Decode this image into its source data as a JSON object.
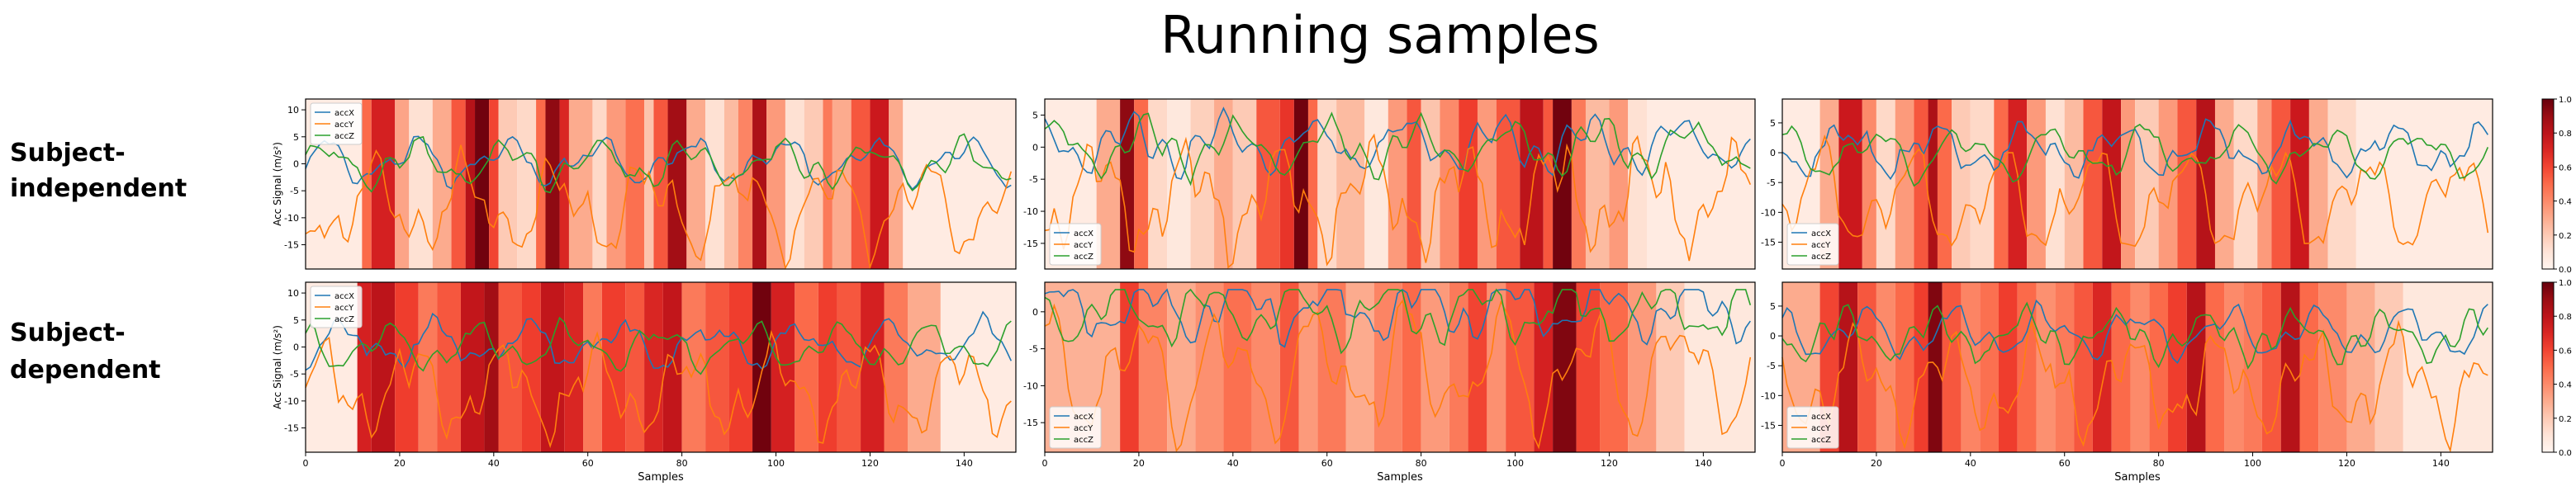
{
  "title": "Running samples",
  "row_labels": [
    [
      "Subject-",
      "independent"
    ],
    [
      "Subject-",
      "dependent"
    ]
  ],
  "colors": {
    "accX": "#1f77b4",
    "accY": "#ff7f0e",
    "accZ": "#2ca02c"
  },
  "colormap": "Reds",
  "chart_data": [
    {
      "type": "line",
      "row": 0,
      "col": 0,
      "x_range": [
        0,
        151
      ],
      "ylim": [
        -19.5,
        12
      ],
      "yticks": [
        10,
        5,
        0,
        -5,
        -10,
        -15
      ],
      "xticks": [],
      "ylabel": "Acc Signal (m/s²)",
      "xlabel": "",
      "legend": {
        "loc": "upper-left",
        "entries": [
          "accX",
          "accY",
          "accZ"
        ]
      },
      "attention_bands": [
        {
          "x0": 0,
          "x1": 12,
          "w": 0.06
        },
        {
          "x0": 12,
          "x1": 14,
          "w": 0.5
        },
        {
          "x0": 14,
          "x1": 19,
          "w": 0.72
        },
        {
          "x0": 19,
          "x1": 22,
          "w": 0.32
        },
        {
          "x0": 22,
          "x1": 27,
          "w": 0.12
        },
        {
          "x0": 27,
          "x1": 31,
          "w": 0.3
        },
        {
          "x0": 31,
          "x1": 34,
          "w": 0.55
        },
        {
          "x0": 34,
          "x1": 36,
          "w": 0.82
        },
        {
          "x0": 36,
          "x1": 39,
          "w": 0.98
        },
        {
          "x0": 39,
          "x1": 41,
          "w": 0.6
        },
        {
          "x0": 41,
          "x1": 45,
          "w": 0.2
        },
        {
          "x0": 45,
          "x1": 49,
          "w": 0.15
        },
        {
          "x0": 49,
          "x1": 51,
          "w": 0.5
        },
        {
          "x0": 51,
          "x1": 54,
          "w": 0.92
        },
        {
          "x0": 54,
          "x1": 56,
          "w": 0.7
        },
        {
          "x0": 56,
          "x1": 61,
          "w": 0.3
        },
        {
          "x0": 61,
          "x1": 64,
          "w": 0.15
        },
        {
          "x0": 64,
          "x1": 68,
          "w": 0.35
        },
        {
          "x0": 68,
          "x1": 72,
          "w": 0.48
        },
        {
          "x0": 72,
          "x1": 74,
          "w": 0.22
        },
        {
          "x0": 74,
          "x1": 77,
          "w": 0.55
        },
        {
          "x0": 77,
          "x1": 81,
          "w": 0.88
        },
        {
          "x0": 81,
          "x1": 85,
          "w": 0.3
        },
        {
          "x0": 85,
          "x1": 89,
          "w": 0.12
        },
        {
          "x0": 89,
          "x1": 92,
          "w": 0.25
        },
        {
          "x0": 92,
          "x1": 95,
          "w": 0.42
        },
        {
          "x0": 95,
          "x1": 98,
          "w": 0.85
        },
        {
          "x0": 98,
          "x1": 102,
          "w": 0.35
        },
        {
          "x0": 102,
          "x1": 106,
          "w": 0.12
        },
        {
          "x0": 106,
          "x1": 110,
          "w": 0.2
        },
        {
          "x0": 110,
          "x1": 112,
          "w": 0.45
        },
        {
          "x0": 112,
          "x1": 116,
          "w": 0.3
        },
        {
          "x0": 116,
          "x1": 120,
          "w": 0.55
        },
        {
          "x0": 120,
          "x1": 124,
          "w": 0.75
        },
        {
          "x0": 124,
          "x1": 127,
          "w": 0.3
        },
        {
          "x0": 127,
          "x1": 151,
          "w": 0.06
        }
      ]
    },
    {
      "type": "line",
      "row": 0,
      "col": 1,
      "x_range": [
        0,
        151
      ],
      "ylim": [
        -19,
        7.5
      ],
      "yticks": [
        5,
        0,
        -5,
        -10,
        -15
      ],
      "xticks": [],
      "ylabel": "",
      "xlabel": "",
      "legend": {
        "loc": "lower-left",
        "entries": [
          "accX",
          "accY",
          "accZ"
        ]
      },
      "attention_bands": [
        {
          "x0": 0,
          "x1": 11,
          "w": 0.06
        },
        {
          "x0": 11,
          "x1": 16,
          "w": 0.3
        },
        {
          "x0": 16,
          "x1": 19,
          "w": 0.92
        },
        {
          "x0": 19,
          "x1": 22,
          "w": 0.5
        },
        {
          "x0": 22,
          "x1": 26,
          "w": 0.15
        },
        {
          "x0": 26,
          "x1": 31,
          "w": 0.08
        },
        {
          "x0": 31,
          "x1": 36,
          "w": 0.18
        },
        {
          "x0": 36,
          "x1": 40,
          "w": 0.3
        },
        {
          "x0": 40,
          "x1": 45,
          "w": 0.2
        },
        {
          "x0": 45,
          "x1": 50,
          "w": 0.55
        },
        {
          "x0": 50,
          "x1": 53,
          "w": 0.65
        },
        {
          "x0": 53,
          "x1": 56,
          "w": 0.98
        },
        {
          "x0": 56,
          "x1": 58,
          "w": 0.5
        },
        {
          "x0": 58,
          "x1": 62,
          "w": 0.15
        },
        {
          "x0": 62,
          "x1": 68,
          "w": 0.25
        },
        {
          "x0": 68,
          "x1": 73,
          "w": 0.08
        },
        {
          "x0": 73,
          "x1": 77,
          "w": 0.35
        },
        {
          "x0": 77,
          "x1": 80,
          "w": 0.55
        },
        {
          "x0": 80,
          "x1": 84,
          "w": 0.22
        },
        {
          "x0": 84,
          "x1": 88,
          "w": 0.4
        },
        {
          "x0": 88,
          "x1": 92,
          "w": 0.62
        },
        {
          "x0": 92,
          "x1": 96,
          "w": 0.35
        },
        {
          "x0": 96,
          "x1": 101,
          "w": 0.55
        },
        {
          "x0": 101,
          "x1": 106,
          "w": 0.8
        },
        {
          "x0": 106,
          "x1": 108,
          "w": 0.55
        },
        {
          "x0": 108,
          "x1": 112,
          "w": 0.98
        },
        {
          "x0": 112,
          "x1": 115,
          "w": 0.45
        },
        {
          "x0": 115,
          "x1": 120,
          "w": 0.25
        },
        {
          "x0": 120,
          "x1": 124,
          "w": 0.35
        },
        {
          "x0": 124,
          "x1": 128,
          "w": 0.12
        },
        {
          "x0": 128,
          "x1": 151,
          "w": 0.06
        }
      ]
    },
    {
      "type": "line",
      "row": 0,
      "col": 2,
      "x_range": [
        0,
        151
      ],
      "ylim": [
        -19.5,
        9
      ],
      "yticks": [
        5,
        0,
        -5,
        -10,
        -15
      ],
      "xticks": [],
      "ylabel": "",
      "xlabel": "",
      "legend": {
        "loc": "lower-left",
        "entries": [
          "accX",
          "accY",
          "accZ"
        ]
      },
      "attention_bands": [
        {
          "x0": 0,
          "x1": 8,
          "w": 0.06
        },
        {
          "x0": 8,
          "x1": 12,
          "w": 0.3
        },
        {
          "x0": 12,
          "x1": 17,
          "w": 0.75
        },
        {
          "x0": 17,
          "x1": 20,
          "w": 0.4
        },
        {
          "x0": 20,
          "x1": 24,
          "w": 0.15
        },
        {
          "x0": 24,
          "x1": 28,
          "w": 0.35
        },
        {
          "x0": 28,
          "x1": 31,
          "w": 0.55
        },
        {
          "x0": 31,
          "x1": 33,
          "w": 0.85
        },
        {
          "x0": 33,
          "x1": 36,
          "w": 0.5
        },
        {
          "x0": 36,
          "x1": 40,
          "w": 0.2
        },
        {
          "x0": 40,
          "x1": 45,
          "w": 0.15
        },
        {
          "x0": 45,
          "x1": 48,
          "w": 0.5
        },
        {
          "x0": 48,
          "x1": 52,
          "w": 0.72
        },
        {
          "x0": 52,
          "x1": 56,
          "w": 0.35
        },
        {
          "x0": 56,
          "x1": 60,
          "w": 0.12
        },
        {
          "x0": 60,
          "x1": 64,
          "w": 0.25
        },
        {
          "x0": 64,
          "x1": 68,
          "w": 0.55
        },
        {
          "x0": 68,
          "x1": 72,
          "w": 0.78
        },
        {
          "x0": 72,
          "x1": 75,
          "w": 0.35
        },
        {
          "x0": 75,
          "x1": 80,
          "w": 0.2
        },
        {
          "x0": 80,
          "x1": 84,
          "w": 0.35
        },
        {
          "x0": 84,
          "x1": 88,
          "w": 0.55
        },
        {
          "x0": 88,
          "x1": 92,
          "w": 0.82
        },
        {
          "x0": 92,
          "x1": 96,
          "w": 0.3
        },
        {
          "x0": 96,
          "x1": 101,
          "w": 0.15
        },
        {
          "x0": 101,
          "x1": 104,
          "w": 0.35
        },
        {
          "x0": 104,
          "x1": 108,
          "w": 0.55
        },
        {
          "x0": 108,
          "x1": 112,
          "w": 0.75
        },
        {
          "x0": 112,
          "x1": 116,
          "w": 0.3
        },
        {
          "x0": 116,
          "x1": 122,
          "w": 0.15
        },
        {
          "x0": 122,
          "x1": 151,
          "w": 0.06
        }
      ]
    },
    {
      "type": "line",
      "row": 1,
      "col": 0,
      "x_range": [
        0,
        151
      ],
      "ylim": [
        -19.5,
        12
      ],
      "yticks": [
        10,
        5,
        0,
        -5,
        -10,
        -15
      ],
      "xticks": [
        0,
        20,
        40,
        60,
        80,
        100,
        120,
        140
      ],
      "ylabel": "Acc Signal (m/s²)",
      "xlabel": "Samples",
      "legend": {
        "loc": "upper-left",
        "entries": [
          "accX",
          "accY",
          "accZ"
        ]
      },
      "attention_bands": [
        {
          "x0": 0,
          "x1": 11,
          "w": 0.06
        },
        {
          "x0": 11,
          "x1": 14,
          "w": 0.72
        },
        {
          "x0": 14,
          "x1": 19,
          "w": 0.8
        },
        {
          "x0": 19,
          "x1": 24,
          "w": 0.62
        },
        {
          "x0": 24,
          "x1": 28,
          "w": 0.45
        },
        {
          "x0": 28,
          "x1": 33,
          "w": 0.55
        },
        {
          "x0": 33,
          "x1": 38,
          "w": 0.78
        },
        {
          "x0": 38,
          "x1": 41,
          "w": 0.88
        },
        {
          "x0": 41,
          "x1": 46,
          "w": 0.55
        },
        {
          "x0": 46,
          "x1": 50,
          "w": 0.62
        },
        {
          "x0": 50,
          "x1": 55,
          "w": 0.78
        },
        {
          "x0": 55,
          "x1": 59,
          "w": 0.7
        },
        {
          "x0": 59,
          "x1": 63,
          "w": 0.45
        },
        {
          "x0": 63,
          "x1": 68,
          "w": 0.62
        },
        {
          "x0": 68,
          "x1": 72,
          "w": 0.55
        },
        {
          "x0": 72,
          "x1": 76,
          "w": 0.7
        },
        {
          "x0": 76,
          "x1": 80,
          "w": 0.78
        },
        {
          "x0": 80,
          "x1": 85,
          "w": 0.45
        },
        {
          "x0": 85,
          "x1": 90,
          "w": 0.55
        },
        {
          "x0": 90,
          "x1": 95,
          "w": 0.62
        },
        {
          "x0": 95,
          "x1": 99,
          "w": 0.98
        },
        {
          "x0": 99,
          "x1": 104,
          "w": 0.72
        },
        {
          "x0": 104,
          "x1": 109,
          "w": 0.5
        },
        {
          "x0": 109,
          "x1": 113,
          "w": 0.62
        },
        {
          "x0": 113,
          "x1": 118,
          "w": 0.55
        },
        {
          "x0": 118,
          "x1": 123,
          "w": 0.72
        },
        {
          "x0": 123,
          "x1": 128,
          "w": 0.45
        },
        {
          "x0": 128,
          "x1": 135,
          "w": 0.3
        },
        {
          "x0": 135,
          "x1": 151,
          "w": 0.06
        }
      ]
    },
    {
      "type": "line",
      "row": 1,
      "col": 1,
      "x_range": [
        0,
        151
      ],
      "ylim": [
        -19,
        4
      ],
      "yticks": [
        0,
        -5,
        -10,
        -15
      ],
      "xticks": [
        0,
        20,
        40,
        60,
        80,
        100,
        120,
        140
      ],
      "ylabel": "",
      "xlabel": "Samples",
      "legend": {
        "loc": "lower-left",
        "entries": [
          "accX",
          "accY",
          "accZ"
        ]
      },
      "attention_bands": [
        {
          "x0": 0,
          "x1": 16,
          "w": 0.28
        },
        {
          "x0": 16,
          "x1": 20,
          "w": 0.62
        },
        {
          "x0": 20,
          "x1": 26,
          "w": 0.42
        },
        {
          "x0": 26,
          "x1": 32,
          "w": 0.3
        },
        {
          "x0": 32,
          "x1": 38,
          "w": 0.38
        },
        {
          "x0": 38,
          "x1": 44,
          "w": 0.48
        },
        {
          "x0": 44,
          "x1": 50,
          "w": 0.4
        },
        {
          "x0": 50,
          "x1": 54,
          "w": 0.55
        },
        {
          "x0": 54,
          "x1": 58,
          "w": 0.35
        },
        {
          "x0": 58,
          "x1": 64,
          "w": 0.45
        },
        {
          "x0": 64,
          "x1": 70,
          "w": 0.3
        },
        {
          "x0": 70,
          "x1": 76,
          "w": 0.42
        },
        {
          "x0": 76,
          "x1": 80,
          "w": 0.5
        },
        {
          "x0": 80,
          "x1": 86,
          "w": 0.35
        },
        {
          "x0": 86,
          "x1": 90,
          "w": 0.45
        },
        {
          "x0": 90,
          "x1": 94,
          "w": 0.6
        },
        {
          "x0": 94,
          "x1": 98,
          "w": 0.38
        },
        {
          "x0": 98,
          "x1": 104,
          "w": 0.55
        },
        {
          "x0": 104,
          "x1": 108,
          "w": 0.72
        },
        {
          "x0": 108,
          "x1": 113,
          "w": 0.95
        },
        {
          "x0": 113,
          "x1": 118,
          "w": 0.6
        },
        {
          "x0": 118,
          "x1": 124,
          "w": 0.5
        },
        {
          "x0": 124,
          "x1": 130,
          "w": 0.35
        },
        {
          "x0": 130,
          "x1": 136,
          "w": 0.2
        },
        {
          "x0": 136,
          "x1": 151,
          "w": 0.08
        }
      ]
    },
    {
      "type": "line",
      "row": 1,
      "col": 2,
      "x_range": [
        0,
        151
      ],
      "ylim": [
        -19.5,
        9
      ],
      "yticks": [
        5,
        0,
        -5,
        -10,
        -15
      ],
      "xticks": [
        0,
        20,
        40,
        60,
        80,
        100,
        120,
        140
      ],
      "ylabel": "",
      "xlabel": "Samples",
      "legend": {
        "loc": "lower-left",
        "entries": [
          "accX",
          "accY",
          "accZ"
        ]
      },
      "attention_bands": [
        {
          "x0": 0,
          "x1": 8,
          "w": 0.3
        },
        {
          "x0": 8,
          "x1": 12,
          "w": 0.6
        },
        {
          "x0": 12,
          "x1": 16,
          "w": 0.82
        },
        {
          "x0": 16,
          "x1": 20,
          "w": 0.55
        },
        {
          "x0": 20,
          "x1": 24,
          "w": 0.4
        },
        {
          "x0": 24,
          "x1": 28,
          "w": 0.5
        },
        {
          "x0": 28,
          "x1": 31,
          "w": 0.62
        },
        {
          "x0": 31,
          "x1": 34,
          "w": 0.95
        },
        {
          "x0": 34,
          "x1": 38,
          "w": 0.55
        },
        {
          "x0": 38,
          "x1": 42,
          "w": 0.42
        },
        {
          "x0": 42,
          "x1": 46,
          "w": 0.48
        },
        {
          "x0": 46,
          "x1": 50,
          "w": 0.62
        },
        {
          "x0": 50,
          "x1": 54,
          "w": 0.5
        },
        {
          "x0": 54,
          "x1": 58,
          "w": 0.38
        },
        {
          "x0": 58,
          "x1": 62,
          "w": 0.45
        },
        {
          "x0": 62,
          "x1": 66,
          "w": 0.55
        },
        {
          "x0": 66,
          "x1": 70,
          "w": 0.7
        },
        {
          "x0": 70,
          "x1": 74,
          "w": 0.5
        },
        {
          "x0": 74,
          "x1": 78,
          "w": 0.4
        },
        {
          "x0": 78,
          "x1": 82,
          "w": 0.5
        },
        {
          "x0": 82,
          "x1": 86,
          "w": 0.62
        },
        {
          "x0": 86,
          "x1": 90,
          "w": 0.82
        },
        {
          "x0": 90,
          "x1": 94,
          "w": 0.5
        },
        {
          "x0": 94,
          "x1": 98,
          "w": 0.4
        },
        {
          "x0": 98,
          "x1": 102,
          "w": 0.45
        },
        {
          "x0": 102,
          "x1": 106,
          "w": 0.55
        },
        {
          "x0": 106,
          "x1": 110,
          "w": 0.82
        },
        {
          "x0": 110,
          "x1": 114,
          "w": 0.5
        },
        {
          "x0": 114,
          "x1": 120,
          "w": 0.4
        },
        {
          "x0": 120,
          "x1": 126,
          "w": 0.3
        },
        {
          "x0": 126,
          "x1": 132,
          "w": 0.2
        },
        {
          "x0": 132,
          "x1": 151,
          "w": 0.08
        }
      ]
    }
  ],
  "colorbars": [
    {
      "ticks": [
        "1.0",
        "0.8",
        "0.6",
        "0.4",
        "0.2",
        "0.0"
      ]
    },
    {
      "ticks": [
        "1.0",
        "0.8",
        "0.6",
        "0.4",
        "0.2",
        "0.0"
      ]
    }
  ]
}
